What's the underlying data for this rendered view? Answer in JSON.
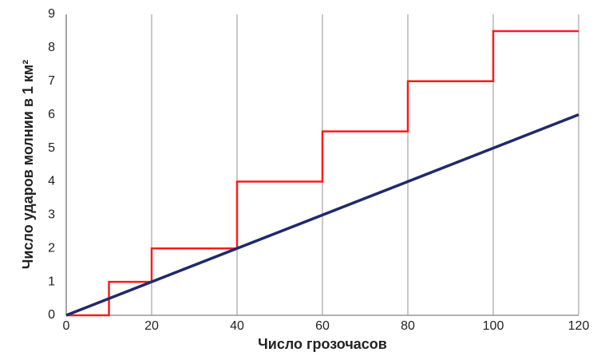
{
  "chart_data": {
    "type": "line",
    "x_label": "Число грозочасов",
    "y_label": "Число ударов молнии в 1 км²",
    "xlim": [
      0,
      120
    ],
    "xticks": [
      0,
      20,
      40,
      60,
      80,
      100,
      120
    ],
    "ylim": [
      0,
      9
    ],
    "yticks": [
      0,
      1,
      2,
      3,
      4,
      5,
      6,
      7,
      8,
      9
    ],
    "grid": "x",
    "series": [
      {
        "color": "#ff1a1a",
        "x": [
          0,
          10,
          10,
          20,
          20,
          40,
          40,
          60,
          60,
          80,
          80,
          100,
          100,
          120
        ],
        "values": [
          0,
          0,
          1,
          1,
          2,
          2,
          4,
          4,
          5.5,
          5.5,
          7,
          7,
          8.5,
          8.5
        ]
      },
      {
        "color": "#1f2a6b",
        "x": [
          0,
          120
        ],
        "values": [
          0,
          6
        ]
      }
    ]
  }
}
